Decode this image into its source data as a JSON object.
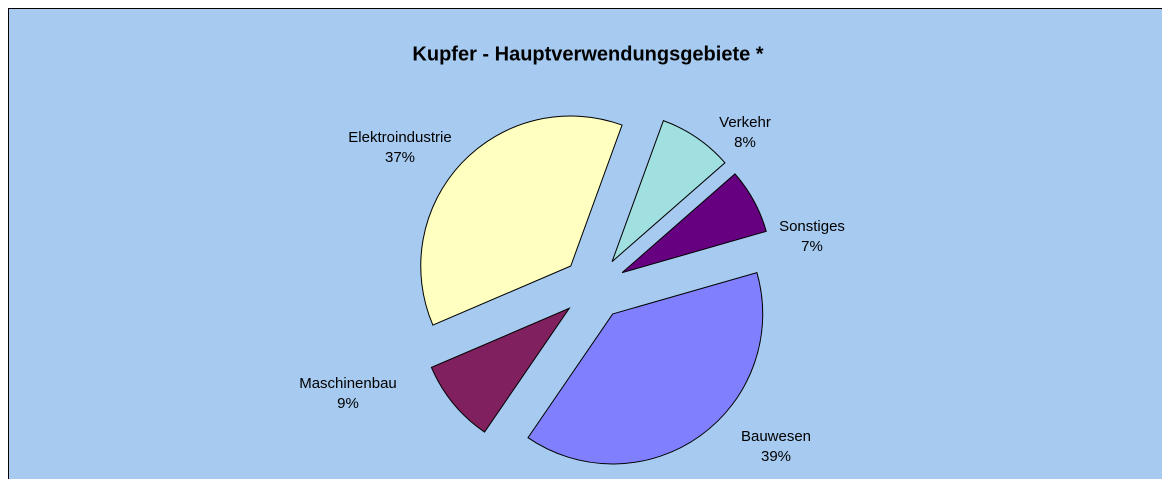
{
  "chart_data": {
    "type": "pie",
    "title": "Kupfer - Hauptverwendungsgebiete *",
    "categories": [
      "Verkehr",
      "Sonstiges",
      "Bauwesen",
      "Maschinenbau",
      "Elektroindustrie"
    ],
    "values": [
      8,
      7,
      39,
      9,
      37
    ],
    "value_labels": [
      "8%",
      "7%",
      "39%",
      "9%",
      "37%"
    ],
    "colors": [
      "#a0e0e0",
      "#660080",
      "#8080ff",
      "#80205f",
      "#ffffc0"
    ],
    "exploded": true
  }
}
